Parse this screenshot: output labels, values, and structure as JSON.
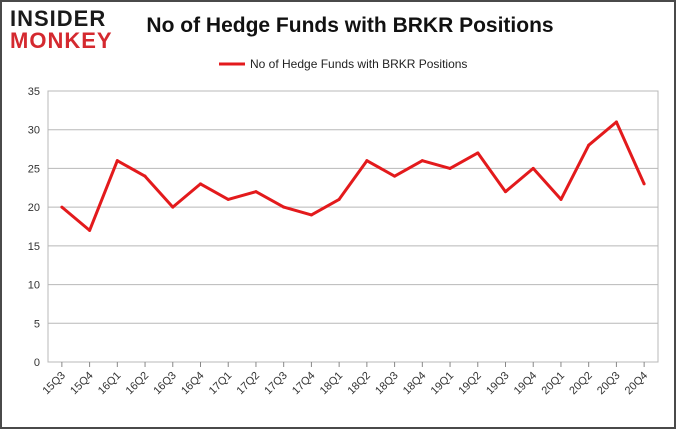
{
  "branding": {
    "logo_line1": "INSIDER",
    "logo_line2": "MONKEY"
  },
  "chart_data": {
    "type": "line",
    "title": "No of Hedge Funds with BRKR Positions",
    "categories": [
      "15Q3",
      "15Q4",
      "16Q1",
      "16Q2",
      "16Q3",
      "16Q4",
      "17Q1",
      "17Q2",
      "17Q3",
      "17Q4",
      "18Q1",
      "18Q2",
      "18Q3",
      "18Q4",
      "19Q1",
      "19Q2",
      "19Q3",
      "19Q4",
      "20Q1",
      "20Q2",
      "20Q3",
      "20Q4"
    ],
    "series": [
      {
        "name": "No of Hedge Funds with BRKR Positions",
        "values": [
          20,
          17,
          26,
          24,
          20,
          23,
          21,
          22,
          20,
          19,
          21,
          26,
          24,
          26,
          25,
          27,
          22,
          25,
          21,
          28,
          31,
          23
        ],
        "color": "#e31a1c"
      }
    ],
    "ylim": [
      0,
      35
    ],
    "yticks": [
      0,
      5,
      10,
      15,
      20,
      25,
      30,
      35
    ],
    "grid": true,
    "legend": "top-center"
  }
}
